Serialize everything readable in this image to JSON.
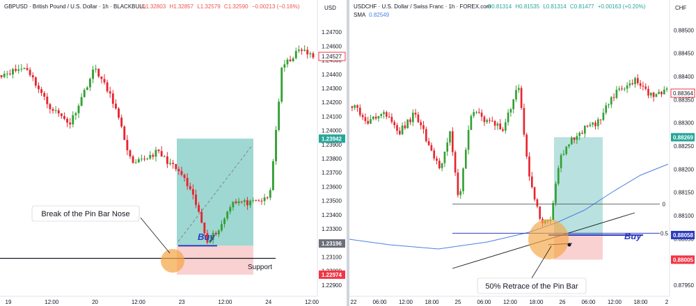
{
  "colors": {
    "up": "#26a69a",
    "down": "#f23645",
    "up_candle": "#33a033",
    "down_candle": "#e8242e",
    "target_zone": "#7fc9c4",
    "stop_zone": "#f7c6c6",
    "sma": "#4a7fe0",
    "highlight_circle": "#f5a442",
    "buy_line": "#2c3bbd"
  },
  "chart_data": [
    {
      "type": "candlestick",
      "symbol_line": "GBPUSD · British Pound / U.S. Dollar · 1h · BLACKBULL",
      "ohlc_label": {
        "o": "O1.32803",
        "h": "H1.32857",
        "l": "L1.32579",
        "c": "C1.32590",
        "chg": "−0.00213 (−0.16%)"
      },
      "currency": "USD",
      "y_ticks": [
        "1.24700",
        "1.24600",
        "1.24500",
        "1.24400",
        "1.24300",
        "1.24200",
        "1.24100",
        "1.24000",
        "1.23900",
        "1.23800",
        "1.23700",
        "1.23600",
        "1.23500",
        "1.23400",
        "1.23300",
        "1.23200",
        "1.23100",
        "1.23000",
        "1.22900"
      ],
      "ylim": [
        1.2285,
        1.2478
      ],
      "x_ticks": [
        "19",
        "12:00",
        "20",
        "12:00",
        "23",
        "12:00",
        "24",
        "12:00"
      ],
      "price_tags": [
        {
          "value": "1.24527",
          "kind": "current"
        },
        {
          "value": "1.23942",
          "kind": "target"
        },
        {
          "value": "1.23196",
          "kind": "neutral"
        },
        {
          "value": "1.22974",
          "kind": "stop"
        }
      ],
      "annotations": {
        "callout": "Break of the Pin Bar Nose",
        "buy": "Buy",
        "support": "Support"
      },
      "levels": {
        "support": 1.2309,
        "entry": 1.2318,
        "target": 1.23942,
        "stop": 1.22974
      }
    },
    {
      "type": "candlestick",
      "symbol_line": "USDCHF · U.S. Dollar / Swiss Franc · 1h · FOREX.com",
      "ohlc_label": {
        "o": "O0.81314",
        "h": "H0.81535",
        "l": "L0.81314",
        "c": "C0.81477",
        "chg": "+0.00163 (+0.20%)"
      },
      "sma_label": {
        "name": "SMA",
        "value": "0.82549"
      },
      "currency": "CHF",
      "y_ticks": [
        "0.88500",
        "0.88450",
        "0.88400",
        "0.88350",
        "0.88300",
        "0.88250",
        "0.88200",
        "0.88150",
        "0.88100",
        "0.88050",
        "0.88000",
        "0.87950"
      ],
      "ylim": [
        0.87935,
        0.8852
      ],
      "x_ticks": [
        "22",
        "06:00",
        "12:00",
        "18:00",
        "25",
        "06:00",
        "12:00",
        "18:00",
        "26",
        "06:00",
        "12:00",
        "18:00",
        "2"
      ],
      "price_tags": [
        {
          "value": "0.88364",
          "kind": "current"
        },
        {
          "value": "0.88269",
          "kind": "target"
        },
        {
          "value": "0.88058",
          "kind": "neutral"
        },
        {
          "value": "0.88005",
          "kind": "stop"
        }
      ],
      "fib_labels": [
        "0",
        "0.5"
      ],
      "annotations": {
        "callout": "50% Retrace of the Pin Bar",
        "buy": "Buy"
      },
      "levels": {
        "fib0": 0.88125,
        "fib05": 0.88062,
        "entry": 0.88058,
        "target": 0.88269,
        "stop": 0.88005
      }
    }
  ]
}
